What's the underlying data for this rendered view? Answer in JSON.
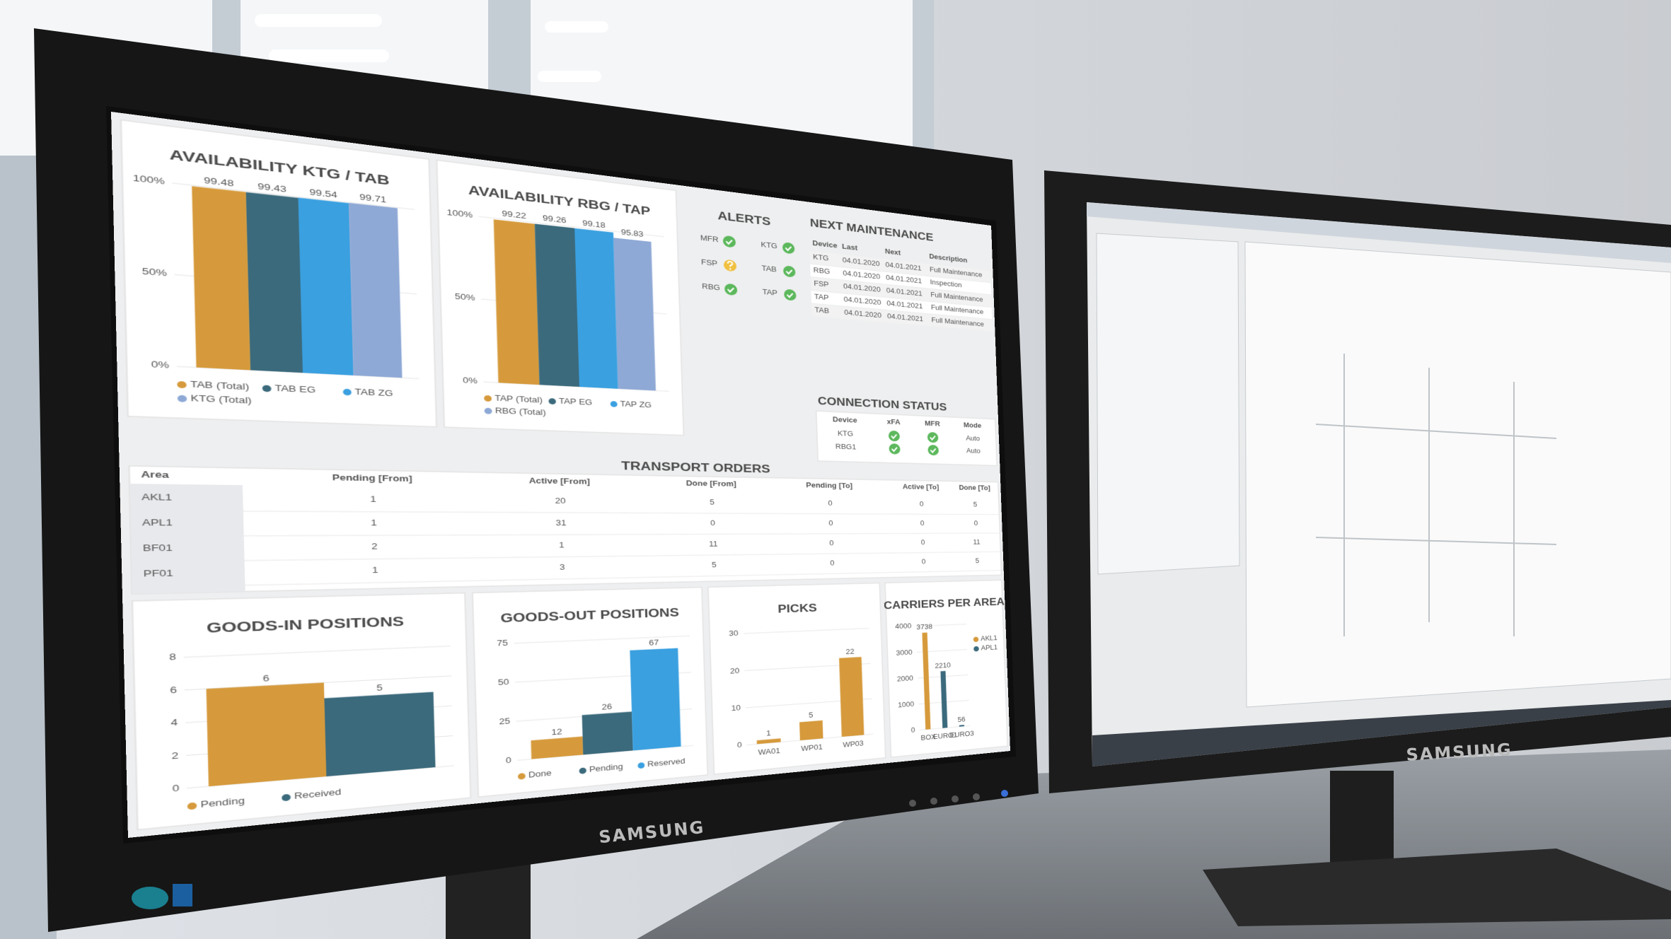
{
  "brand": "SAMSUNG",
  "chart_data": [
    {
      "type": "bar",
      "title": "AVAILABILITY KTG / TAB",
      "categories": [
        null
      ],
      "series": [
        {
          "name": "TAB (Total)",
          "color": "#d69a3c",
          "values": [
            99.48
          ]
        },
        {
          "name": "TAB EG",
          "color": "#3b6a7c",
          "values": [
            99.43
          ]
        },
        {
          "name": "TAB ZG",
          "color": "#3aa0e0",
          "values": [
            99.54
          ]
        },
        {
          "name": "KTG (Total)",
          "color": "#8fa9d6",
          "values": [
            99.71
          ]
        }
      ],
      "ylim": [
        0,
        100
      ],
      "yticks": [
        {
          "value": 0,
          "label": "0%"
        },
        {
          "value": 50,
          "label": "50%"
        },
        {
          "value": 100,
          "label": "100%"
        }
      ],
      "legend": "bottom",
      "grid": true
    },
    {
      "type": "bar",
      "title": "AVAILABILITY RBG / TAP",
      "categories": [
        null
      ],
      "series": [
        {
          "name": "TAP (Total)",
          "color": "#d69a3c",
          "values": [
            99.22
          ]
        },
        {
          "name": "TAP EG",
          "color": "#3b6a7c",
          "values": [
            99.26
          ]
        },
        {
          "name": "TAP ZG",
          "color": "#3aa0e0",
          "values": [
            99.18
          ]
        },
        {
          "name": "RBG (Total)",
          "color": "#8fa9d6",
          "values": [
            95.83
          ]
        }
      ],
      "ylim": [
        0,
        100
      ],
      "yticks": [
        {
          "value": 0,
          "label": "0%"
        },
        {
          "value": 50,
          "label": "50%"
        },
        {
          "value": 100,
          "label": "100%"
        }
      ],
      "legend": "bottom",
      "grid": true
    },
    {
      "type": "bar",
      "title": "GOODS-IN POSITIONS",
      "categories": [
        null
      ],
      "series": [
        {
          "name": "Pending",
          "color": "#d69a3c",
          "values": [
            6
          ]
        },
        {
          "name": "Received",
          "color": "#3b6a7c",
          "values": [
            5
          ]
        }
      ],
      "ylim": [
        0,
        8
      ],
      "yticks": [
        0,
        2,
        4,
        6,
        8
      ],
      "legend": "bottom",
      "grid": true
    },
    {
      "type": "bar",
      "title": "GOODS-OUT POSITIONS",
      "categories": [
        null
      ],
      "series": [
        {
          "name": "Done",
          "color": "#d69a3c",
          "values": [
            12
          ]
        },
        {
          "name": "Pending",
          "color": "#3b6a7c",
          "values": [
            26
          ]
        },
        {
          "name": "Reserved",
          "color": "#3aa0e0",
          "values": [
            67
          ]
        }
      ],
      "ylim": [
        0,
        75
      ],
      "yticks": [
        0,
        25,
        50,
        75
      ],
      "legend": "bottom",
      "grid": true
    },
    {
      "type": "bar",
      "title": "PICKS",
      "categories": [
        "WA01",
        "WP01",
        "WP03"
      ],
      "values": [
        1,
        5,
        22
      ],
      "color": "#d69a3c",
      "ylim": [
        0,
        30
      ],
      "yticks": [
        0,
        10,
        20,
        30
      ],
      "grid": true
    },
    {
      "type": "bar",
      "title": "CARRIERS PER AREA",
      "categories": [
        "BOX",
        "EURO1",
        "EURO3"
      ],
      "series": [
        {
          "name": "AKL1",
          "color": "#d69a3c",
          "values": [
            3738,
            null,
            null
          ]
        },
        {
          "name": "APL1",
          "color": "#3b6a7c",
          "values": [
            null,
            2210,
            56
          ]
        }
      ],
      "ylim": [
        0,
        4000
      ],
      "yticks": [
        0,
        1000,
        2000,
        3000,
        4000
      ],
      "legend": "right",
      "grid": true
    }
  ],
  "alerts": {
    "title": "ALERTS",
    "items": [
      {
        "name": "MFR",
        "status": "ok"
      },
      {
        "name": "FSP",
        "status": "warning"
      },
      {
        "name": "RBG",
        "status": "ok"
      },
      {
        "name": "KTG",
        "status": "ok"
      },
      {
        "name": "TAB",
        "status": "ok"
      },
      {
        "name": "TAP",
        "status": "ok"
      }
    ]
  },
  "maintenance": {
    "title": "NEXT MAINTENANCE",
    "columns": [
      "Device",
      "Last",
      "Next",
      "Description"
    ],
    "rows": [
      [
        "KTG",
        "04.01.2020",
        "04.01.2021",
        "Full Maintenance"
      ],
      [
        "RBG",
        "04.01.2020",
        "04.01.2021",
        "Inspection"
      ],
      [
        "FSP",
        "04.01.2020",
        "04.01.2021",
        "Full Maintenance"
      ],
      [
        "TAP",
        "04.01.2020",
        "04.01.2021",
        "Full Maintenance"
      ],
      [
        "TAB",
        "04.01.2020",
        "04.01.2021",
        "Full Maintenance"
      ]
    ]
  },
  "connection": {
    "title": "CONNECTION STATUS",
    "columns": [
      "Device",
      "xFA",
      "MFR",
      "Mode"
    ],
    "rows": [
      {
        "device": "KTG",
        "xfa": "ok",
        "mfr": "ok",
        "mode": "Auto"
      },
      {
        "device": "RBG1",
        "xfa": "ok",
        "mfr": "ok",
        "mode": "Auto"
      }
    ]
  },
  "transport": {
    "title": "TRANSPORT ORDERS",
    "columns": [
      "Area",
      "Pending [From]",
      "Active [From]",
      "Done [From]",
      "Pending [To]",
      "Active [To]",
      "Done [To]"
    ],
    "rows": [
      [
        "AKL1",
        1,
        20,
        5,
        0,
        0,
        5
      ],
      [
        "APL1",
        1,
        31,
        0,
        0,
        0,
        0
      ],
      [
        "BF01",
        2,
        1,
        11,
        0,
        0,
        11
      ],
      [
        "PF01",
        1,
        3,
        5,
        0,
        0,
        5
      ]
    ]
  }
}
